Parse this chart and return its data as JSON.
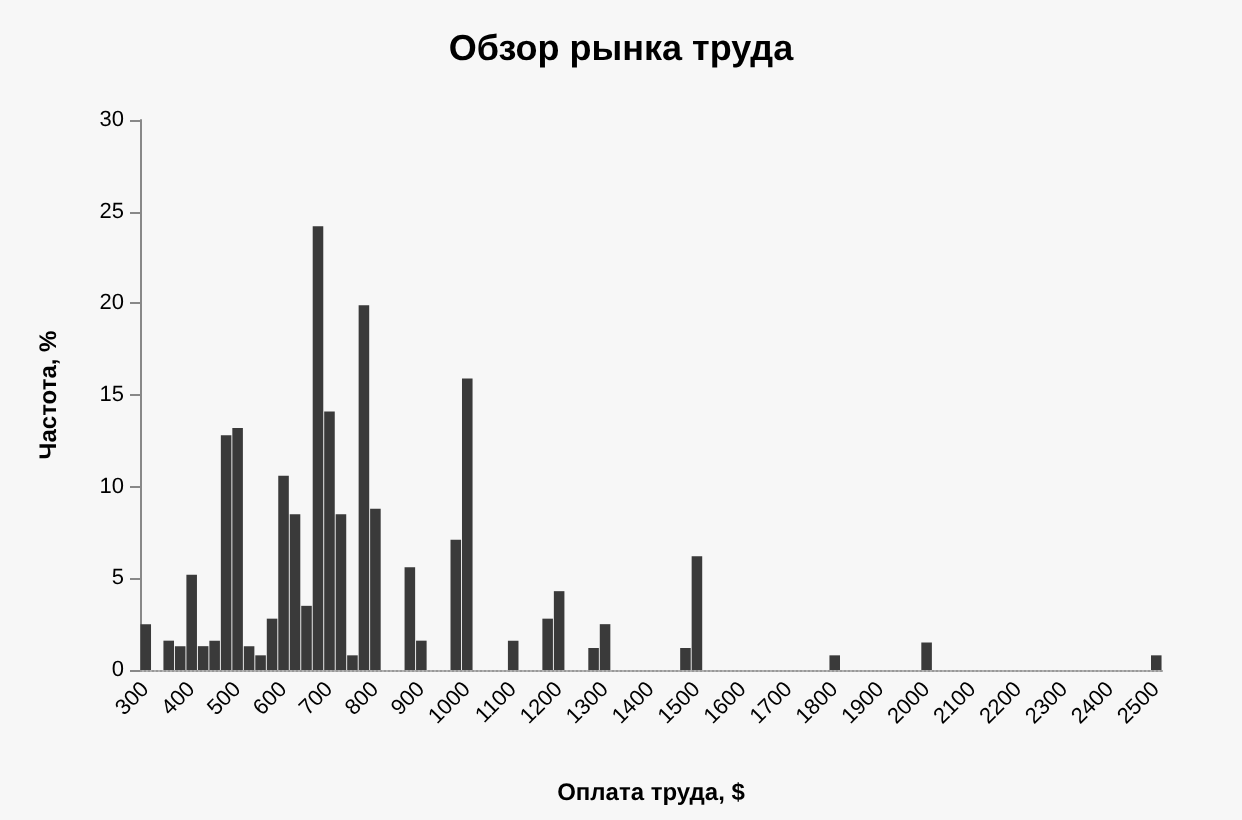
{
  "chart_data": {
    "type": "bar",
    "title": "Обзор рынка труда",
    "xlabel": "Оплата труда, $",
    "ylabel": "Частота, %",
    "categories": [
      "300",
      null,
      null,
      null,
      "400",
      null,
      null,
      null,
      "500",
      null,
      null,
      null,
      "600",
      null,
      null,
      null,
      "700",
      null,
      null,
      null,
      "800",
      null,
      null,
      null,
      "900",
      null,
      null,
      null,
      "1000",
      null,
      null,
      null,
      "1100",
      null,
      null,
      null,
      "1200",
      null,
      null,
      null,
      "1300",
      null,
      null,
      null,
      "1400",
      null,
      null,
      null,
      "1500",
      null,
      null,
      null,
      "1600",
      null,
      null,
      null,
      "1700",
      null,
      null,
      null,
      "1800",
      null,
      null,
      null,
      "1900",
      null,
      null,
      null,
      "2000",
      null,
      null,
      null,
      "2100",
      null,
      null,
      null,
      "2200",
      null,
      null,
      null,
      "2300",
      null,
      null,
      null,
      "2400",
      null,
      null,
      null,
      "2500"
    ],
    "values": [
      2.5,
      0,
      1.6,
      1.3,
      5.2,
      1.3,
      1.6,
      12.8,
      13.2,
      1.3,
      0.8,
      2.8,
      10.6,
      8.5,
      3.5,
      24.2,
      14.1,
      8.5,
      0.8,
      19.9,
      8.8,
      0,
      0,
      5.6,
      1.6,
      0,
      0,
      7.1,
      15.9,
      0,
      0,
      0,
      1.6,
      0,
      0,
      2.8,
      4.3,
      0,
      0,
      1.2,
      2.5,
      0,
      0,
      0,
      0,
      0,
      0,
      1.2,
      6.2,
      0,
      0,
      0,
      0,
      0,
      0,
      0,
      0,
      0,
      0,
      0,
      0.8,
      0,
      0,
      0,
      0,
      0,
      0,
      0,
      1.5,
      0,
      0,
      0,
      0,
      0,
      0,
      0,
      0,
      0,
      0,
      0,
      0,
      0,
      0,
      0,
      0,
      0,
      0,
      0,
      0.8
    ],
    "color": "#3a3a3a",
    "ylim": [
      0,
      30
    ],
    "yticks": [
      0,
      5,
      10,
      15,
      20,
      25,
      30
    ],
    "grid": false
  }
}
